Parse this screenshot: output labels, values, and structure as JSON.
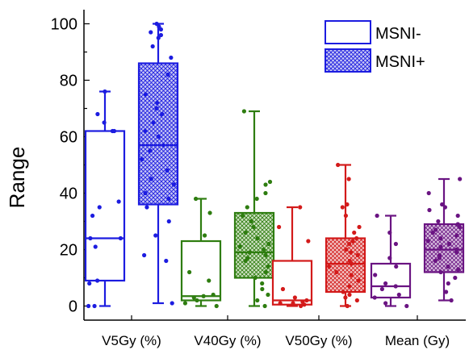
{
  "chart_data": {
    "type": "box",
    "ylabel": "Range",
    "xlabel": "",
    "ylim": [
      -5,
      105
    ],
    "yticks": [
      0,
      20,
      40,
      60,
      80,
      100
    ],
    "grid": false,
    "legend_position": "top-right",
    "categories": [
      "V5Gy (%)",
      "V40Gy (%)",
      "V50Gy (%)",
      "Mean (Gy)"
    ],
    "category_colors": [
      "#1c1ce0",
      "#2e7d10",
      "#d31a1a",
      "#6a1482"
    ],
    "series": [
      {
        "name": "MSNI-",
        "pattern": "none",
        "boxes": [
          {
            "min": 0,
            "q1": 9,
            "median": 24,
            "q3": 62,
            "max": 76,
            "points": [
              0,
              0,
              8,
              9,
              21,
              24,
              24,
              32,
              35,
              37,
              62,
              62,
              65,
              68,
              76
            ]
          },
          {
            "min": 0,
            "q1": 2,
            "median": 3.5,
            "q3": 23,
            "max": 38,
            "points": [
              0,
              1,
              2,
              3,
              3.5,
              4,
              9,
              12,
              25,
              33,
              38
            ]
          },
          {
            "min": 0,
            "q1": 0.5,
            "median": 2,
            "q3": 16,
            "max": 35,
            "points": [
              0,
              0.5,
              1,
              1,
              1.5,
              2,
              3,
              6,
              23,
              28,
              35
            ]
          },
          {
            "min": 0,
            "q1": 3,
            "median": 7,
            "q3": 15,
            "max": 32,
            "points": [
              0,
              1,
              3,
              4,
              6,
              7,
              8,
              11,
              14,
              17,
              22,
              26,
              32
            ]
          }
        ]
      },
      {
        "name": "MSNI+",
        "pattern": "crosshatch",
        "boxes": [
          {
            "min": 1,
            "q1": 36,
            "median": 57,
            "q3": 86,
            "max": 100,
            "points": [
              1,
              16,
              18,
              25,
              30,
              35,
              38,
              40,
              43,
              45,
              48,
              52,
              55,
              57,
              60,
              62,
              65,
              68,
              70,
              72,
              75,
              82,
              88,
              92,
              95,
              96,
              97,
              98,
              99,
              100
            ]
          },
          {
            "min": 0,
            "q1": 10,
            "median": 19,
            "q3": 33,
            "max": 69,
            "points": [
              0,
              2,
              4,
              6,
              8,
              10,
              12,
              14,
              16,
              17,
              18,
              19,
              20,
              21,
              22,
              24,
              26,
              28,
              30,
              32,
              35,
              38,
              40,
              43,
              44,
              69
            ]
          },
          {
            "min": 0,
            "q1": 5,
            "median": 15,
            "q3": 24,
            "max": 50,
            "points": [
              0,
              2,
              3,
              4,
              5,
              7,
              9,
              11,
              12,
              14,
              15,
              16,
              18,
              19,
              20,
              22,
              23,
              24,
              26,
              28,
              32,
              35,
              36,
              45,
              50
            ]
          },
          {
            "min": 2,
            "q1": 12,
            "median": 20,
            "q3": 29,
            "max": 45,
            "points": [
              2,
              5,
              8,
              10,
              12,
              13,
              14,
              16,
              17,
              18,
              19,
              20,
              21,
              22,
              23,
              24,
              25,
              26,
              27,
              28,
              29,
              30,
              32,
              34,
              35,
              36,
              40,
              45
            ]
          }
        ]
      }
    ]
  }
}
